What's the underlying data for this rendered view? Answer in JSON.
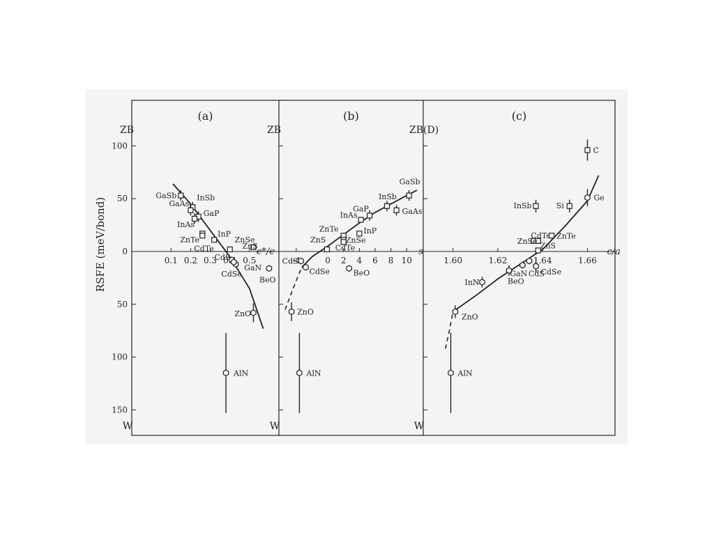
{
  "chart_data": [
    {
      "panel": "(a)",
      "type": "scatter",
      "top_label": "ZB",
      "bottom_label": "W",
      "ylabel": "RSFE (meV/bond)",
      "xlabel": "e*/e",
      "xlim": [
        -0.1,
        0.65
      ],
      "ylim": [
        -165,
        168
      ],
      "xticks": [
        0.1,
        0.2,
        0.3,
        0.4,
        0.5
      ],
      "yticks": [
        {
          "value": 100,
          "label": "100"
        },
        {
          "value": 50,
          "label": "50"
        },
        {
          "value": 0,
          "label": "0"
        },
        {
          "value": -50,
          "label": "50"
        },
        {
          "value": -100,
          "label": "100"
        },
        {
          "value": -150,
          "label": "150"
        }
      ],
      "points": [
        {
          "name": "GaSb",
          "x": 0.15,
          "y": 53,
          "marker": "square",
          "err": 5
        },
        {
          "name": "InSb",
          "x": 0.21,
          "y": 42,
          "marker": "square",
          "err": 5
        },
        {
          "name": "GaP",
          "x": 0.24,
          "y": 33,
          "marker": "square",
          "err": 5
        },
        {
          "name": "GaAs",
          "x": 0.2,
          "y": 39,
          "marker": "square",
          "err": 5
        },
        {
          "name": "InAs",
          "x": 0.22,
          "y": 31,
          "marker": "square",
          "err": 5
        },
        {
          "name": "InP",
          "x": 0.32,
          "y": 11,
          "marker": "square",
          "err": 0
        },
        {
          "name": "ZnTe",
          "x": 0.26,
          "y": 17,
          "marker": "square",
          "err": 0
        },
        {
          "name": "CdTe",
          "x": 0.26,
          "y": 15,
          "marker": "square",
          "err": 0
        },
        {
          "name": "ZnSe",
          "x": 0.4,
          "y": 2,
          "marker": "square",
          "err": 0
        },
        {
          "name": "ZnS",
          "x": 0.52,
          "y": 4,
          "marker": "square",
          "err": 0
        },
        {
          "name": "CdS",
          "x": 0.41,
          "y": -8,
          "marker": "hexagon",
          "err": 0
        },
        {
          "name": "GaN",
          "x": 0.43,
          "y": -12,
          "marker": "hexagon",
          "err": 0
        },
        {
          "name": "CdSe",
          "x": 0.42,
          "y": -10,
          "marker": "hexagon",
          "err": 0
        },
        {
          "name": "BeO",
          "x": 0.6,
          "y": -16,
          "marker": "hexagon",
          "err": 0
        },
        {
          "name": "ZnO",
          "x": 0.52,
          "y": -58,
          "marker": "hexagon",
          "err": 9
        },
        {
          "name": "AlN",
          "x": 0.38,
          "y": -115,
          "marker": "hexagon",
          "err": 38
        }
      ],
      "fit_curve": [
        [
          0.11,
          64
        ],
        [
          0.2,
          45
        ],
        [
          0.3,
          20
        ],
        [
          0.4,
          -5
        ],
        [
          0.5,
          -35
        ],
        [
          0.57,
          -73
        ]
      ]
    },
    {
      "panel": "(b)",
      "type": "scatter",
      "top_label": "ZB",
      "bottom_label": "W",
      "xlabel": "s",
      "xlim": [
        -6.2,
        12.1
      ],
      "ylim": [
        -165,
        168
      ],
      "xticks": [
        -4,
        0,
        2,
        4,
        6,
        8,
        10
      ],
      "yticks": [],
      "points": [
        {
          "name": "GaSb",
          "x": 10.3,
          "y": 53,
          "marker": "square",
          "err": 5
        },
        {
          "name": "InSb",
          "x": 7.5,
          "y": 43,
          "marker": "square",
          "err": 5
        },
        {
          "name": "GaAs",
          "x": 8.7,
          "y": 39,
          "marker": "square",
          "err": 5
        },
        {
          "name": "GaP",
          "x": 5.3,
          "y": 34,
          "marker": "square",
          "err": 5
        },
        {
          "name": "InAs",
          "x": 4.2,
          "y": 30,
          "marker": "square",
          "err": 0
        },
        {
          "name": "InP",
          "x": 4,
          "y": 17,
          "marker": "square",
          "err": 0
        },
        {
          "name": "ZnTe",
          "x": 2,
          "y": 15,
          "marker": "square",
          "err": 0
        },
        {
          "name": "ZnSe",
          "x": 2,
          "y": 11,
          "marker": "square",
          "err": 0
        },
        {
          "name": "CdTe",
          "x": 2,
          "y": 9,
          "marker": "square",
          "err": 0
        },
        {
          "name": "ZnS",
          "x": -0.1,
          "y": 2,
          "marker": "square",
          "err": 0
        },
        {
          "name": "CdS",
          "x": -3.4,
          "y": -9,
          "marker": "hexagon",
          "err": 0
        },
        {
          "name": "CdSe",
          "x": -2.8,
          "y": -15,
          "marker": "hexagon",
          "err": 0
        },
        {
          "name": "BeO",
          "x": 2.7,
          "y": -16,
          "marker": "hexagon",
          "err": 0
        },
        {
          "name": "ZnO",
          "x": -4.6,
          "y": -57,
          "marker": "hexagon",
          "err": 9
        },
        {
          "name": "AlN",
          "x": -3.6,
          "y": -115,
          "marker": "hexagon",
          "err": 38
        }
      ],
      "fit_curve": [
        [
          -3.3,
          -15
        ],
        [
          -2,
          -5
        ],
        [
          0,
          5
        ],
        [
          2,
          16
        ],
        [
          4,
          27
        ],
        [
          6,
          37
        ],
        [
          8,
          45
        ],
        [
          10,
          53
        ],
        [
          11.3,
          58
        ]
      ],
      "dashed_curve": [
        [
          -5.4,
          -55
        ],
        [
          -4.5,
          -37
        ],
        [
          -3.8,
          -24
        ],
        [
          -3.3,
          -15
        ]
      ]
    },
    {
      "panel": "(c)",
      "type": "scatter",
      "top_label": "ZB(D)",
      "bottom_label": "W",
      "xlabel": "c/a",
      "xlim": [
        1.5867,
        1.6723
      ],
      "ylim": [
        -165,
        168
      ],
      "xticks": [
        1.6,
        1.62,
        1.64,
        1.66
      ],
      "xtick_labels": [
        "1.60",
        "1.62",
        "1.64",
        "1.66"
      ],
      "yticks": [],
      "points": [
        {
          "name": "C",
          "x": 1.66,
          "y": 96,
          "marker": "square",
          "err": 10
        },
        {
          "name": "Ge",
          "x": 1.66,
          "y": 51,
          "marker": "hexagon",
          "err": 8
        },
        {
          "name": "Si",
          "x": 1.652,
          "y": 43,
          "marker": "square",
          "err": 6
        },
        {
          "name": "InSb",
          "x": 1.637,
          "y": 43,
          "marker": "square",
          "err": 6
        },
        {
          "name": "CdTe",
          "x": 1.636,
          "y": 10,
          "marker": "square",
          "err": 0
        },
        {
          "name": "ZnTe",
          "x": 1.644,
          "y": 15,
          "marker": "square",
          "err": 0
        },
        {
          "name": "ZnSe",
          "x": 1.638,
          "y": 10,
          "marker": "square",
          "err": 0
        },
        {
          "name": "ZnS",
          "x": 1.638,
          "y": 1,
          "marker": "square",
          "err": 0
        },
        {
          "name": "InN",
          "x": 1.613,
          "y": -29,
          "marker": "hexagon",
          "err": 5
        },
        {
          "name": "BeO",
          "x": 1.625,
          "y": -18,
          "marker": "hexagon",
          "err": 5
        },
        {
          "name": "GaN",
          "x": 1.631,
          "y": -13,
          "marker": "hexagon",
          "err": 0
        },
        {
          "name": "CdS",
          "x": 1.634,
          "y": -9,
          "marker": "hexagon",
          "err": 0
        },
        {
          "name": "CdSe",
          "x": 1.637,
          "y": -14,
          "marker": "hexagon",
          "err": 6
        },
        {
          "name": "ZnO",
          "x": 1.601,
          "y": -57,
          "marker": "hexagon",
          "err": 6
        },
        {
          "name": "AlN",
          "x": 1.599,
          "y": -115,
          "marker": "hexagon",
          "err": 38
        }
      ],
      "fit_curve": [
        [
          1.6,
          -57
        ],
        [
          1.61,
          -42
        ],
        [
          1.62,
          -26
        ],
        [
          1.63,
          -12
        ],
        [
          1.64,
          2
        ],
        [
          1.65,
          24
        ],
        [
          1.66,
          48
        ],
        [
          1.665,
          72
        ]
      ],
      "dashed_curve": [
        [
          1.5966,
          -92
        ],
        [
          1.5982,
          -77
        ],
        [
          1.6,
          -57
        ]
      ]
    }
  ]
}
